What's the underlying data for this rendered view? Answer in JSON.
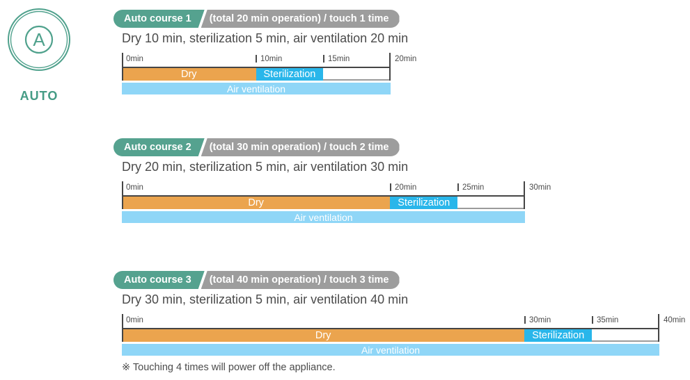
{
  "auto_icon": {
    "letter": "A",
    "label": "AUTO"
  },
  "colors": {
    "accent_teal": "#55a28f",
    "pill_gray": "#9d9d9d",
    "dry_orange": "#eba44e",
    "sterilization_blue": "#29b6ea",
    "air_ventilation_blue": "#8fd6f7",
    "axis_dark": "#454545",
    "text_dark": "#4b4b4b"
  },
  "footnote": {
    "text": "※ Touching 4 times will power off the appliance."
  },
  "courses": [
    {
      "pill": {
        "course": "Auto course 1",
        "info": "(total 20 min operation) / touch 1 time"
      },
      "description": "Dry 10 min, sterilization 5 min, air ventilation 20 min",
      "chart": {
        "type": "timeline",
        "unit": "min",
        "total": 20,
        "ticks": [
          {
            "min": 0,
            "label": "0min"
          },
          {
            "min": 10,
            "label": "10min"
          },
          {
            "min": 15,
            "label": "15min"
          },
          {
            "min": 20,
            "label": "20min"
          }
        ],
        "segments": [
          {
            "label": "Dry",
            "start": 0,
            "end": 10,
            "kind": "dry"
          },
          {
            "label": "Sterilization",
            "start": 10,
            "end": 15,
            "kind": "sterilization"
          },
          {
            "label": "",
            "start": 15,
            "end": 20,
            "kind": "remaining"
          }
        ],
        "overlay": {
          "label": "Air ventilation",
          "start": 0,
          "end": 20,
          "kind": "air"
        }
      }
    },
    {
      "pill": {
        "course": "Auto course 2",
        "info": "(total 30 min operation) / touch 2 time"
      },
      "description": "Dry 20 min, sterilization 5 min, air ventilation 30 min",
      "chart": {
        "type": "timeline",
        "unit": "min",
        "total": 30,
        "ticks": [
          {
            "min": 0,
            "label": "0min"
          },
          {
            "min": 20,
            "label": "20min"
          },
          {
            "min": 25,
            "label": "25min"
          },
          {
            "min": 30,
            "label": "30min"
          }
        ],
        "segments": [
          {
            "label": "Dry",
            "start": 0,
            "end": 20,
            "kind": "dry"
          },
          {
            "label": "Sterilization",
            "start": 20,
            "end": 25,
            "kind": "sterilization"
          },
          {
            "label": "",
            "start": 25,
            "end": 30,
            "kind": "remaining"
          }
        ],
        "overlay": {
          "label": "Air ventilation",
          "start": 0,
          "end": 30,
          "kind": "air"
        }
      }
    },
    {
      "pill": {
        "course": "Auto course 3",
        "info": "(total 40 min operation) / touch 3 time"
      },
      "description": "Dry 30 min, sterilization 5 min, air ventilation 40 min",
      "chart": {
        "type": "timeline",
        "unit": "min",
        "total": 40,
        "ticks": [
          {
            "min": 0,
            "label": "0min"
          },
          {
            "min": 30,
            "label": "30min"
          },
          {
            "min": 35,
            "label": "35min"
          },
          {
            "min": 40,
            "label": "40min"
          }
        ],
        "segments": [
          {
            "label": "Dry",
            "start": 0,
            "end": 30,
            "kind": "dry"
          },
          {
            "label": "Sterilization",
            "start": 30,
            "end": 35,
            "kind": "sterilization"
          },
          {
            "label": "",
            "start": 35,
            "end": 40,
            "kind": "remaining"
          }
        ],
        "overlay": {
          "label": "Air ventilation",
          "start": 0,
          "end": 40,
          "kind": "air"
        }
      }
    }
  ]
}
